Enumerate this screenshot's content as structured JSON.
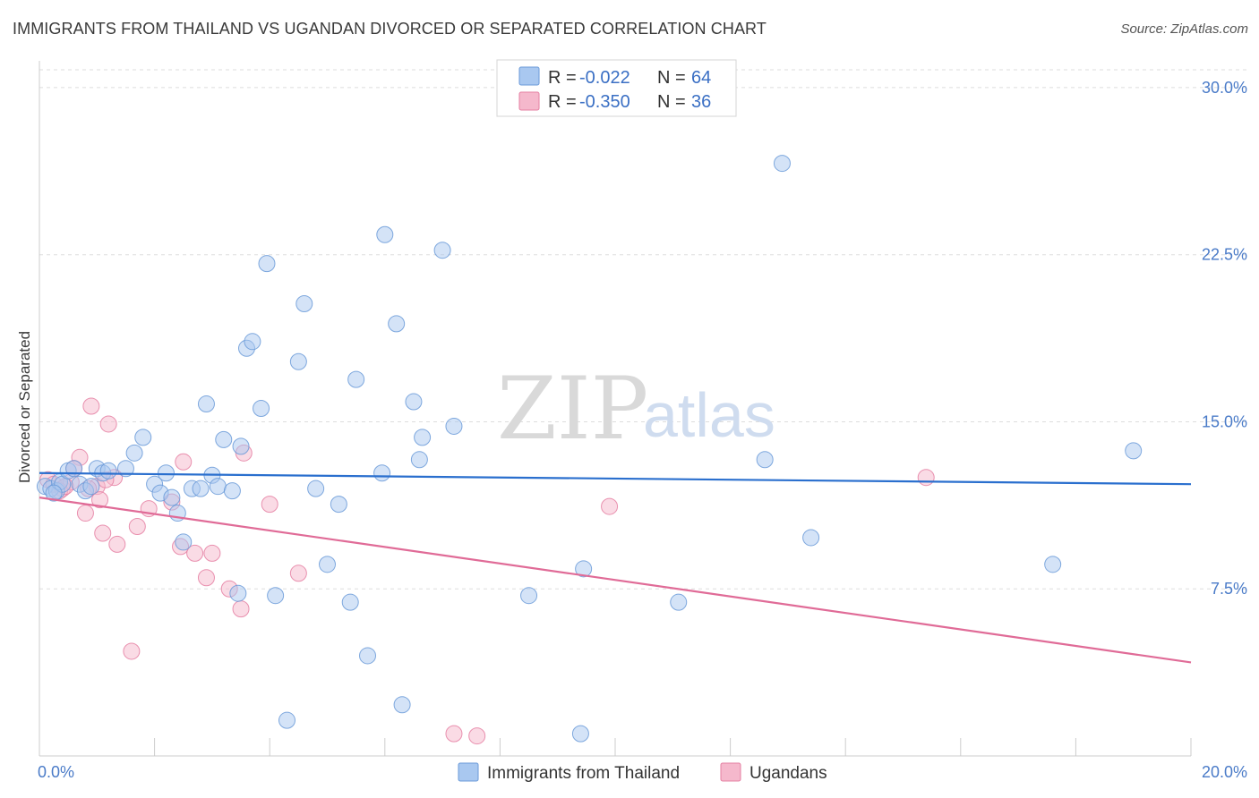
{
  "title": "IMMIGRANTS FROM THAILAND VS UGANDAN DIVORCED OR SEPARATED CORRELATION CHART",
  "source": "Source: ZipAtlas.com",
  "watermark": {
    "zip": "ZIP",
    "atlas": "atlas"
  },
  "colors": {
    "blue_fill": "#a9c8f0",
    "blue_stroke": "#6a9ad8",
    "blue_line": "#2a6fce",
    "pink_fill": "#f5b8cc",
    "pink_stroke": "#e57fa2",
    "pink_line": "#e06b97",
    "grid": "#dddddd",
    "tick_text": "#4a7bc8"
  },
  "legend": {
    "rows": [
      {
        "r_label": "R =",
        "r_value": "-0.022",
        "n_label": "N =",
        "n_value": "64"
      },
      {
        "r_label": "R =",
        "r_value": "-0.350",
        "n_label": "N =",
        "n_value": "36"
      }
    ]
  },
  "chart_data": {
    "type": "scatter",
    "title": "IMMIGRANTS FROM THAILAND VS UGANDAN DIVORCED OR SEPARATED CORRELATION CHART",
    "xlabel": "",
    "ylabel": "Divorced or Separated",
    "xlim": [
      0,
      20
    ],
    "ylim": [
      0,
      30.8
    ],
    "x_tick_labels": [
      "0.0%",
      "20.0%"
    ],
    "y_ticks": [
      7.5,
      15.0,
      22.5,
      30.0
    ],
    "y_tick_labels": [
      "7.5%",
      "15.0%",
      "22.5%",
      "30.0%"
    ],
    "grid": true,
    "legend_position": "top-center",
    "series": [
      {
        "name": "Immigrants from Thailand",
        "color": "blue",
        "trend": {
          "x": [
            0,
            20
          ],
          "y": [
            12.7,
            12.2
          ]
        },
        "points": [
          [
            0.1,
            12.1
          ],
          [
            0.2,
            12.0
          ],
          [
            0.3,
            11.9
          ],
          [
            0.35,
            12.3
          ],
          [
            0.4,
            12.2
          ],
          [
            0.5,
            12.8
          ],
          [
            0.6,
            12.9
          ],
          [
            0.7,
            12.2
          ],
          [
            0.8,
            11.9
          ],
          [
            0.9,
            12.1
          ],
          [
            1.0,
            12.9
          ],
          [
            1.1,
            12.7
          ],
          [
            1.2,
            12.8
          ],
          [
            1.65,
            13.6
          ],
          [
            1.8,
            14.3
          ],
          [
            2.0,
            12.2
          ],
          [
            2.1,
            11.8
          ],
          [
            2.2,
            12.7
          ],
          [
            2.3,
            11.6
          ],
          [
            2.4,
            10.9
          ],
          [
            2.5,
            9.6
          ],
          [
            2.65,
            12.0
          ],
          [
            2.8,
            12.0
          ],
          [
            2.9,
            15.8
          ],
          [
            3.0,
            12.6
          ],
          [
            3.1,
            12.1
          ],
          [
            3.2,
            14.2
          ],
          [
            3.35,
            11.9
          ],
          [
            3.45,
            7.3
          ],
          [
            3.5,
            13.9
          ],
          [
            3.6,
            18.3
          ],
          [
            3.7,
            18.6
          ],
          [
            3.85,
            15.6
          ],
          [
            3.95,
            22.1
          ],
          [
            4.1,
            7.2
          ],
          [
            4.3,
            1.6
          ],
          [
            4.5,
            17.7
          ],
          [
            4.6,
            20.3
          ],
          [
            4.8,
            12.0
          ],
          [
            5.0,
            8.6
          ],
          [
            5.2,
            11.3
          ],
          [
            5.4,
            6.9
          ],
          [
            5.5,
            16.9
          ],
          [
            5.7,
            4.5
          ],
          [
            5.95,
            12.7
          ],
          [
            6.0,
            23.4
          ],
          [
            6.2,
            19.4
          ],
          [
            6.3,
            2.3
          ],
          [
            6.5,
            15.9
          ],
          [
            6.6,
            13.3
          ],
          [
            6.65,
            14.3
          ],
          [
            7.0,
            22.7
          ],
          [
            7.2,
            14.8
          ],
          [
            8.5,
            7.2
          ],
          [
            9.4,
            1.0
          ],
          [
            9.45,
            8.4
          ],
          [
            11.1,
            6.9
          ],
          [
            12.6,
            13.3
          ],
          [
            12.9,
            26.6
          ],
          [
            13.4,
            9.8
          ],
          [
            17.6,
            8.6
          ],
          [
            19.0,
            13.7
          ],
          [
            0.25,
            11.8
          ],
          [
            1.5,
            12.9
          ]
        ]
      },
      {
        "name": "Ugandans",
        "color": "pink",
        "trend": {
          "x": [
            0,
            20
          ],
          "y": [
            11.6,
            4.2
          ]
        },
        "points": [
          [
            0.15,
            12.4
          ],
          [
            0.25,
            12.2
          ],
          [
            0.4,
            12.0
          ],
          [
            0.55,
            12.3
          ],
          [
            0.7,
            13.4
          ],
          [
            0.8,
            10.9
          ],
          [
            0.9,
            15.7
          ],
          [
            1.0,
            12.1
          ],
          [
            1.05,
            11.5
          ],
          [
            1.1,
            10.0
          ],
          [
            1.3,
            12.5
          ],
          [
            1.35,
            9.5
          ],
          [
            1.6,
            4.7
          ],
          [
            1.7,
            10.3
          ],
          [
            1.9,
            11.1
          ],
          [
            2.3,
            11.4
          ],
          [
            2.45,
            9.4
          ],
          [
            2.5,
            13.2
          ],
          [
            2.7,
            9.1
          ],
          [
            2.9,
            8.0
          ],
          [
            3.0,
            9.1
          ],
          [
            3.3,
            7.5
          ],
          [
            3.5,
            6.6
          ],
          [
            3.55,
            13.6
          ],
          [
            4.0,
            11.3
          ],
          [
            4.5,
            8.2
          ],
          [
            7.2,
            1.0
          ],
          [
            7.6,
            0.9
          ],
          [
            9.9,
            11.2
          ],
          [
            15.4,
            12.5
          ],
          [
            1.2,
            14.9
          ],
          [
            0.6,
            12.9
          ],
          [
            0.35,
            11.9
          ],
          [
            0.45,
            12.1
          ],
          [
            1.15,
            12.4
          ],
          [
            0.85,
            12.0
          ]
        ]
      }
    ]
  },
  "bottom_legend": {
    "items": [
      "Immigrants from Thailand",
      "Ugandans"
    ]
  }
}
